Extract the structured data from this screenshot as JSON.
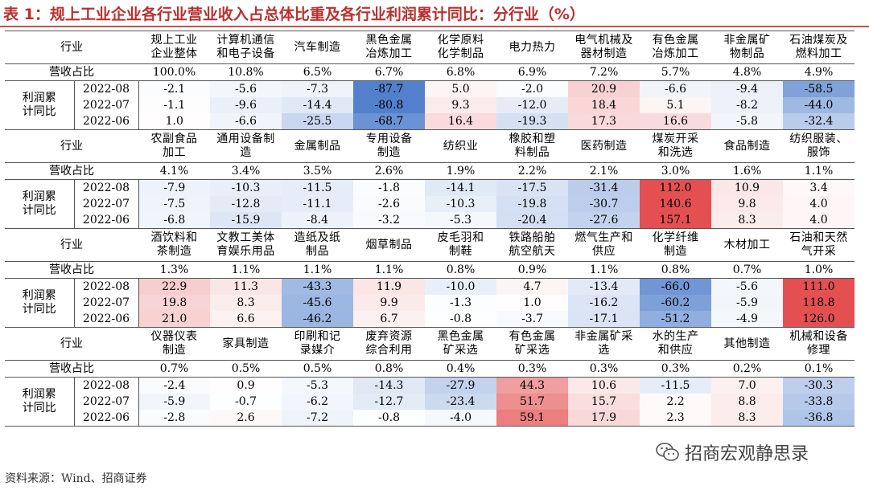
{
  "title": "表 1：规上工业企业各行业营业收入占总体比重及各行业利润累计同比：分行业（%）",
  "row_labels": {
    "industry": "行业",
    "share": "营收占比",
    "profit_group": [
      "利润累",
      "计同比"
    ]
  },
  "dates": [
    "2022-08",
    "2022-07",
    "2022-06"
  ],
  "colors": {
    "positive": "#e0383a",
    "negative": "#3a6fc6",
    "title": "#b8312f",
    "rule": "#c0504d"
  },
  "color_scale_max": 80,
  "blocks": [
    {
      "industries": [
        [
          "规上工业",
          "企业整体"
        ],
        [
          "计算机通信",
          "和电子设备"
        ],
        [
          "汽车制造"
        ],
        [
          "黑色金属",
          "冶炼加工"
        ],
        [
          "化学原料",
          "化学制品"
        ],
        [
          "电力热力"
        ],
        [
          "电气机械及",
          "器材制造"
        ],
        [
          "有色金属",
          "冶炼加工"
        ],
        [
          "非金属矿",
          "物制品"
        ],
        [
          "石油煤炭及",
          "燃料加工"
        ]
      ],
      "shares": [
        "100.0%",
        "10.8%",
        "6.5%",
        "6.7%",
        "6.8%",
        "6.9%",
        "7.2%",
        "5.7%",
        "4.8%",
        "4.9%"
      ],
      "values": [
        [
          "-2.1",
          "-5.6",
          "-7.3",
          "-87.7",
          "5.0",
          "-2.0",
          "20.9",
          "-6.6",
          "-9.4",
          "-58.5"
        ],
        [
          "-1.1",
          "-9.6",
          "-14.4",
          "-80.8",
          "9.3",
          "-12.0",
          "18.4",
          "5.1",
          "-8.2",
          "-44.0"
        ],
        [
          "1.0",
          "-6.6",
          "-25.5",
          "-68.7",
          "16.4",
          "-19.3",
          "17.3",
          "16.6",
          "-5.8",
          "-32.4"
        ]
      ]
    },
    {
      "industries": [
        [
          "农副食品",
          "加工"
        ],
        [
          "通用设备制",
          "造"
        ],
        [
          "金属制品"
        ],
        [
          "专用设备",
          "制造"
        ],
        [
          "纺织业"
        ],
        [
          "橡胶和塑",
          "料制品"
        ],
        [
          "医药制造"
        ],
        [
          "煤炭开采",
          "和洗选"
        ],
        [
          "食品制造"
        ],
        [
          "纺织服装、",
          "服饰"
        ]
      ],
      "shares": [
        "4.1%",
        "3.4%",
        "3.5%",
        "2.6%",
        "1.9%",
        "2.2%",
        "2.1%",
        "3.0%",
        "1.6%",
        "1.1%"
      ],
      "values": [
        [
          "-7.9",
          "-10.3",
          "-11.5",
          "-1.8",
          "-14.1",
          "-17.5",
          "-31.4",
          "112.0",
          "10.9",
          "3.4"
        ],
        [
          "-7.5",
          "-12.8",
          "-11.1",
          "-2.6",
          "-10.3",
          "-19.8",
          "-30.7",
          "140.6",
          "9.8",
          "4.0"
        ],
        [
          "-6.8",
          "-15.9",
          "-8.4",
          "-3.2",
          "-5.3",
          "-20.4",
          "-27.6",
          "157.1",
          "8.3",
          "4.0"
        ]
      ]
    },
    {
      "industries": [
        [
          "酒饮料和",
          "茶制造"
        ],
        [
          "文教工美体",
          "育娱乐用品"
        ],
        [
          "造纸及纸",
          "制品"
        ],
        [
          "烟草制品"
        ],
        [
          "皮毛羽和",
          "制鞋"
        ],
        [
          "铁路船舶",
          "航空航天"
        ],
        [
          "燃气生产和",
          "供应"
        ],
        [
          "化学纤维",
          "制造"
        ],
        [
          "木材加工"
        ],
        [
          "石油和天然",
          "气开采"
        ]
      ],
      "shares": [
        "1.3%",
        "1.1%",
        "1.1%",
        "1.1%",
        "0.8%",
        "0.9%",
        "1.1%",
        "0.8%",
        "0.7%",
        "1.0%"
      ],
      "values": [
        [
          "22.9",
          "11.3",
          "-43.3",
          "11.9",
          "-10.0",
          "4.7",
          "-13.4",
          "-66.0",
          "-5.6",
          "111.0"
        ],
        [
          "19.8",
          "8.3",
          "-45.6",
          "9.9",
          "-1.3",
          "1.0",
          "-16.2",
          "-60.2",
          "-5.9",
          "118.8"
        ],
        [
          "21.0",
          "6.6",
          "-46.2",
          "6.7",
          "-0.8",
          "-3.7",
          "-17.1",
          "-51.2",
          "-4.9",
          "126.0"
        ]
      ]
    },
    {
      "industries": [
        [
          "仪器仪表",
          "制造"
        ],
        [
          "家具制造"
        ],
        [
          "印刷和记",
          "录媒介"
        ],
        [
          "废弃资源",
          "综合利用"
        ],
        [
          "黑色金属",
          "矿采选"
        ],
        [
          "有色金属",
          "矿采选"
        ],
        [
          "非金属矿采",
          "选"
        ],
        [
          "水的生产",
          "和供应"
        ],
        [
          "其他制造"
        ],
        [
          "机械和设备",
          "修理"
        ]
      ],
      "shares": [
        "0.7%",
        "0.5%",
        "0.5%",
        "0.8%",
        "0.4%",
        "0.3%",
        "0.3%",
        "0.3%",
        "0.2%",
        "0.1%"
      ],
      "values": [
        [
          "-2.4",
          "0.9",
          "-5.3",
          "-14.3",
          "-27.9",
          "44.3",
          "10.6",
          "-11.5",
          "7.0",
          "-30.3"
        ],
        [
          "-5.9",
          "-0.7",
          "-6.2",
          "-12.7",
          "-23.4",
          "51.7",
          "15.7",
          "2.2",
          "8.8",
          "-33.8"
        ],
        [
          "-2.8",
          "2.6",
          "-7.2",
          "-0.8",
          "-4.0",
          "59.1",
          "17.9",
          "2.3",
          "8.3",
          "-36.8"
        ]
      ]
    }
  ],
  "footer": "资料来源：Wind、招商证券",
  "watermark": {
    "icon": "wechat-icon",
    "text": "招商宏观静思录"
  }
}
